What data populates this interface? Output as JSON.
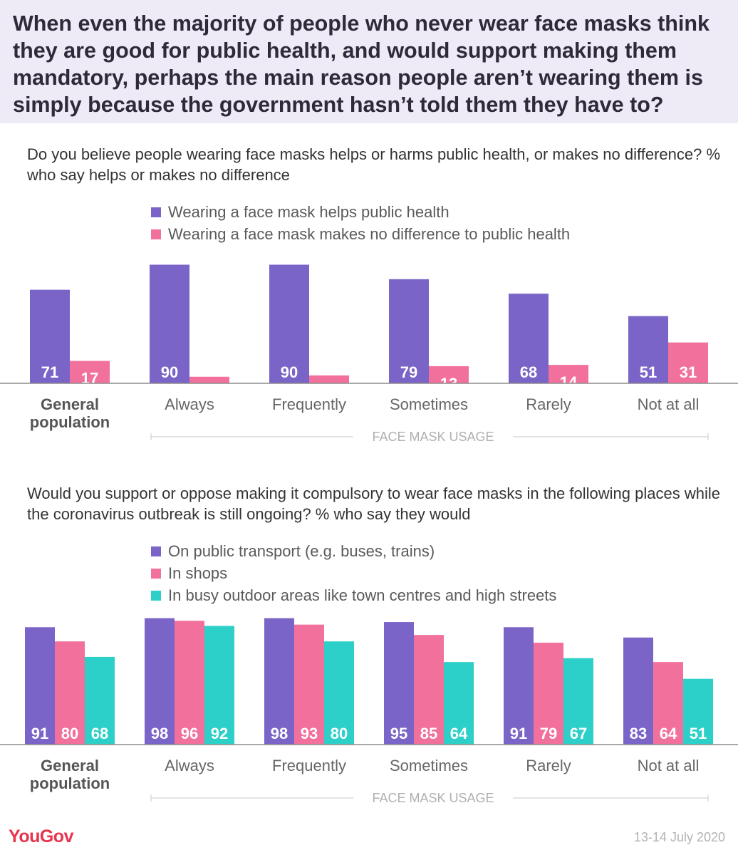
{
  "header": {
    "title": "When even the majority of people who never wear face masks think they are good for public health, and would support making them mandatory, perhaps the main reason people aren’t wearing them is simply because the government hasn’t told them they have to?"
  },
  "chart_data": [
    {
      "type": "bar",
      "title": "Do you believe people wearing face masks helps or harms public health, or makes no difference? % who say helps or makes no difference",
      "categories": [
        "General population",
        "Always",
        "Frequently",
        "Sometimes",
        "Rarely",
        "Not at all"
      ],
      "group_label": "FACE MASK USAGE",
      "ylim": [
        0,
        100
      ],
      "series": [
        {
          "name": "Wearing a face mask helps public health",
          "color": "#7b64c7",
          "values": [
            71,
            90,
            90,
            79,
            68,
            51
          ]
        },
        {
          "name": "Wearing a face mask makes no difference to public health",
          "color": "#f2709c",
          "values": [
            17,
            5,
            6,
            13,
            14,
            31
          ]
        }
      ]
    },
    {
      "type": "bar",
      "title": "Would you support or oppose making it compulsory to wear face masks in the following places while the coronavirus outbreak is still ongoing? % who say they would",
      "categories": [
        "General population",
        "Always",
        "Frequently",
        "Sometimes",
        "Rarely",
        "Not at all"
      ],
      "group_label": "FACE MASK USAGE",
      "ylim": [
        0,
        100
      ],
      "series": [
        {
          "name": "On public transport (e.g. buses, trains)",
          "color": "#7b64c7",
          "values": [
            91,
            98,
            98,
            95,
            91,
            83
          ]
        },
        {
          "name": "In shops",
          "color": "#f2709c",
          "values": [
            80,
            96,
            93,
            85,
            79,
            64
          ]
        },
        {
          "name": "In busy outdoor areas like town centres and high streets",
          "color": "#2dd0c8",
          "values": [
            68,
            92,
            80,
            64,
            67,
            51
          ]
        }
      ]
    }
  ],
  "footer": {
    "brand": "YouGov",
    "date": "13-14 July 2020"
  }
}
